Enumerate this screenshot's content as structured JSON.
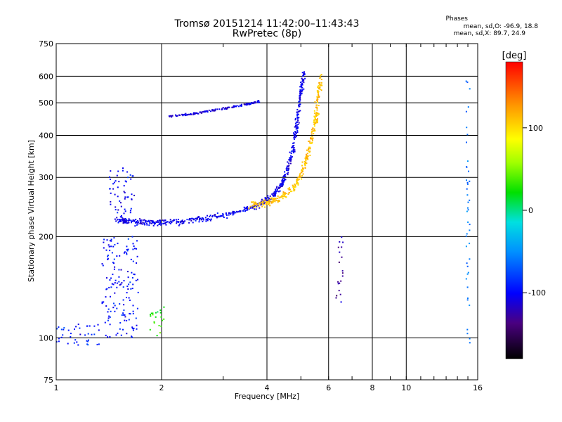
{
  "header": {
    "title": "Tromsø 20151214 11:42:00–11:43:43",
    "subtitle": "RwPretec (8p)"
  },
  "stats": {
    "heading": "Phases",
    "o_mode": "mean, sd,O: -96.9, 18.8",
    "x_mode": "mean, sd,X: 89.7, 24.9"
  },
  "colorbar": {
    "label": "[deg]",
    "ticks": [
      {
        "value": 100,
        "label": "100"
      },
      {
        "value": 0,
        "label": "0"
      },
      {
        "value": -100,
        "label": "-100"
      }
    ],
    "range": [
      -180,
      180
    ],
    "stops": [
      [
        0.0,
        "#000000"
      ],
      [
        0.12,
        "#4a0080"
      ],
      [
        0.22,
        "#0000ff"
      ],
      [
        0.36,
        "#0090ff"
      ],
      [
        0.46,
        "#00e0e0"
      ],
      [
        0.56,
        "#00e000"
      ],
      [
        0.66,
        "#a0ff00"
      ],
      [
        0.74,
        "#ffff00"
      ],
      [
        0.86,
        "#ff9000"
      ],
      [
        1.0,
        "#ff0000"
      ]
    ]
  },
  "chart_data": {
    "type": "scatter",
    "xlabel": "Frequency [MHz]",
    "ylabel": "Stationary phase Virtual Height [km]",
    "xscale": "log",
    "yscale": "log",
    "xlim": [
      1,
      16
    ],
    "ylim": [
      75,
      750
    ],
    "xticks": [
      {
        "value": 1,
        "label": "1"
      },
      {
        "value": 2,
        "label": "2"
      },
      {
        "value": 4,
        "label": "4"
      },
      {
        "value": 6,
        "label": "6"
      },
      {
        "value": 8,
        "label": "8"
      },
      {
        "value": 10,
        "label": "10"
      },
      {
        "value": 16,
        "label": "16"
      }
    ],
    "yticks": [
      {
        "value": 75,
        "label": "75"
      },
      {
        "value": 100,
        "label": "100"
      },
      {
        "value": 200,
        "label": "200"
      },
      {
        "value": 300,
        "label": "300"
      },
      {
        "value": 400,
        "label": "400"
      },
      {
        "value": 500,
        "label": "500"
      },
      {
        "value": 600,
        "label": "600"
      },
      {
        "value": 750,
        "label": "750"
      }
    ],
    "grid": true,
    "point_color": "phase in degrees, mapped on the colorbar",
    "clusters": [
      {
        "name": "O-mode F-trace",
        "x": [
          1.5,
          1.6,
          1.8,
          2.0,
          2.3,
          2.7,
          3.2,
          3.7,
          4.1,
          4.4,
          4.6,
          4.8,
          4.9,
          5.0,
          5.1
        ],
        "y": [
          225,
          222,
          220,
          220,
          222,
          227,
          235,
          245,
          262,
          285,
          320,
          380,
          450,
          540,
          620
        ],
        "phase": -105,
        "spread": 0.03
      },
      {
        "name": "X-mode F-trace",
        "x": [
          3.6,
          4.0,
          4.4,
          4.8,
          5.1,
          5.3,
          5.5,
          5.6,
          5.7
        ],
        "y": [
          248,
          252,
          262,
          280,
          320,
          370,
          440,
          520,
          600
        ],
        "phase": 110,
        "spread": 0.035
      },
      {
        "name": "upper branch",
        "x": [
          2.1,
          2.5,
          3.0,
          3.5,
          3.8
        ],
        "y": [
          455,
          465,
          480,
          495,
          505
        ],
        "phase": -110,
        "spread": 0.01
      },
      {
        "name": "F-spread cloud",
        "x_range": [
          1.42,
          1.68
        ],
        "y_range": [
          220,
          320
        ],
        "phase": -100
      },
      {
        "name": "E/Es cloud",
        "x_range": [
          1.35,
          1.72
        ],
        "y_range": [
          100,
          200
        ],
        "phase": -95
      },
      {
        "name": "low-frequency echoes",
        "x_range": [
          1.0,
          1.35
        ],
        "y_range": [
          95,
          110
        ],
        "phase": -90
      },
      {
        "name": "sparse points near 1.9 MHz",
        "x_range": [
          1.85,
          2.05
        ],
        "y_range": [
          100,
          125
        ],
        "phase": 30
      },
      {
        "name": "scattered points 6.3-6.6 MHz",
        "x_range": [
          6.3,
          6.6
        ],
        "y_range": [
          125,
          200
        ],
        "phase": -130
      },
      {
        "name": "scattered points near 15 MHz",
        "x_range": [
          14.8,
          15.2
        ],
        "y_range": [
          95,
          600
        ],
        "phase": -60
      }
    ]
  }
}
